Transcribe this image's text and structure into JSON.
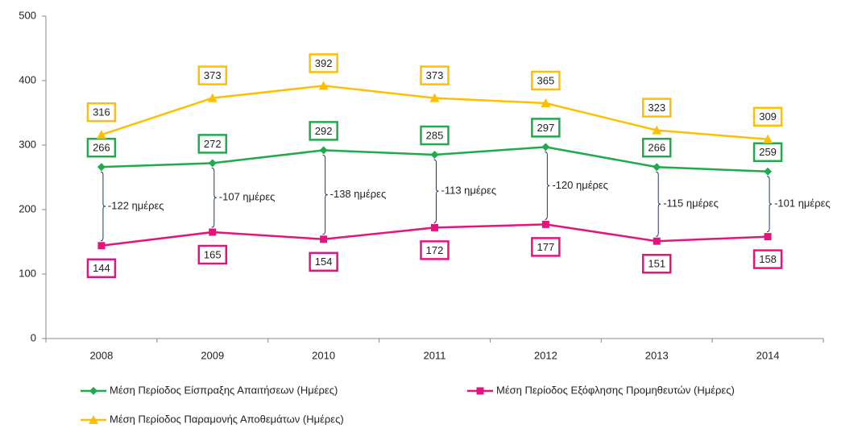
{
  "chart_data": {
    "type": "line",
    "categories": [
      "2008",
      "2009",
      "2010",
      "2011",
      "2012",
      "2013",
      "2014"
    ],
    "series": [
      {
        "name": "Μέση Περίοδος Είσπραξης Απαιτήσεων (Ημέρες)",
        "color": "#1eab4b",
        "marker": "diamond",
        "label_side": "above",
        "values": [
          266,
          272,
          292,
          285,
          297,
          266,
          259
        ]
      },
      {
        "name": "Μέση Περίοδος Εξόφλησης Προμηθευτών (Ημέρες)",
        "color": "#e8127c",
        "marker": "square",
        "label_side": "below",
        "values": [
          144,
          165,
          154,
          172,
          177,
          151,
          158
        ]
      },
      {
        "name": "Μέση Περίοδος Παραμονής Αποθεμάτων (Ημέρες)",
        "color": "#ffbf00",
        "marker": "triangle",
        "label_side": "above",
        "values": [
          316,
          373,
          392,
          373,
          365,
          323,
          309
        ]
      }
    ],
    "annotations": [
      "-122 ημέρες",
      "-107 ημέρες",
      "-138 ημέρες",
      "-113 ημέρες",
      "-120 ημέρες",
      "-115 ημέρες",
      "-101 ημέρες"
    ],
    "ylim": [
      0,
      500
    ],
    "yticks": [
      0,
      100,
      200,
      300,
      400,
      500
    ],
    "grid": false,
    "legend": "bottom"
  }
}
